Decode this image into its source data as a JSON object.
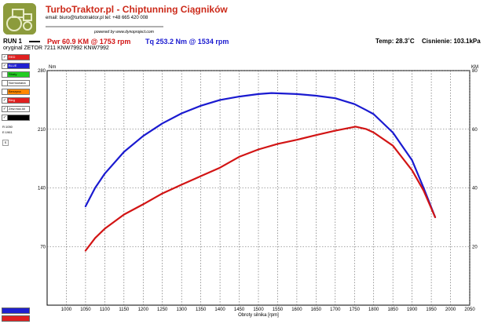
{
  "header": {
    "brand": "TurboTraktor.pl - Chiptunning Ciągników",
    "contact": "email: biuro@turbotraktor.pl     tel: +48 665 420 008",
    "powered": "powered by  www.dynoproject.com",
    "run_label": "RUN 1",
    "pwr_text": "Pwr  60.9 KM @ 1753 rpm",
    "tq_text": "Tq 253.2 Nm @ 1534 rpm",
    "temp_text": "Temp: 28.3˚C",
    "press_text": "Cisnienie: 103.1kPa",
    "vehicle": "oryginal ZETOR 7211 KNW7992 KNW7992"
  },
  "legend": [
    {
      "label": "RED",
      "color": "#e02020",
      "checked": true
    },
    {
      "label": "BLUE",
      "color": "#2020d0",
      "checked": true
    },
    {
      "label": "Straty",
      "color": "#22cc22",
      "checked": false
    },
    {
      "label": "Normowana",
      "color": "#ffffff",
      "checked": false
    },
    {
      "label": "Benzyna",
      "color": "#ff8800",
      "checked": false
    },
    {
      "label": "Bieg",
      "color": "#e02020",
      "checked": true
    },
    {
      "label": "Zew.moc.kli",
      "color": "#ffffff",
      "checked": true
    },
    {
      "label": "",
      "color": "#000000",
      "checked": true
    }
  ],
  "meta": {
    "line1": "R:1050",
    "line2": "E:1961",
    "box": "S"
  },
  "chart_data": {
    "type": "line",
    "xlabel": "Obroty silnika [rpm]",
    "ylabel_left": "Nm",
    "ylabel_right": "KM",
    "xlim": [
      950,
      2050
    ],
    "ylim_left": [
      0,
      280
    ],
    "ylim_right": [
      0,
      80
    ],
    "x_ticks": [
      1000,
      1050,
      1100,
      1150,
      1200,
      1250,
      1300,
      1350,
      1400,
      1450,
      1500,
      1550,
      1600,
      1650,
      1700,
      1750,
      1800,
      1850,
      1900,
      1950,
      2000,
      2050
    ],
    "y_ticks_left": [
      70,
      140,
      210,
      280
    ],
    "y_ticks_right": [
      20,
      40,
      60,
      80
    ],
    "grid": true,
    "series": [
      {
        "axis": "left",
        "color": "#1a1ad0",
        "x": [
          1050,
          1075,
          1100,
          1150,
          1200,
          1250,
          1300,
          1350,
          1400,
          1450,
          1500,
          1534,
          1600,
          1650,
          1700,
          1750,
          1780,
          1800,
          1850,
          1900,
          1930,
          1960
        ],
        "y": [
          118,
          140,
          157,
          183,
          202,
          217,
          229,
          238,
          245,
          249,
          252,
          253.2,
          252,
          250,
          247,
          240,
          233,
          228,
          206,
          173,
          140,
          105
        ]
      },
      {
        "axis": "right",
        "color": "#d21414",
        "x": [
          1050,
          1075,
          1100,
          1150,
          1200,
          1250,
          1300,
          1350,
          1400,
          1450,
          1500,
          1550,
          1600,
          1650,
          1700,
          1753,
          1780,
          1800,
          1850,
          1900,
          1930,
          1960
        ],
        "y": [
          18.6,
          22.9,
          26.1,
          30.9,
          34.4,
          38.1,
          41.1,
          44.0,
          46.9,
          50.6,
          53.1,
          55.0,
          56.4,
          58.0,
          59.5,
          60.9,
          60.1,
          58.9,
          54.4,
          46.0,
          39.1,
          30.0
        ]
      }
    ]
  }
}
